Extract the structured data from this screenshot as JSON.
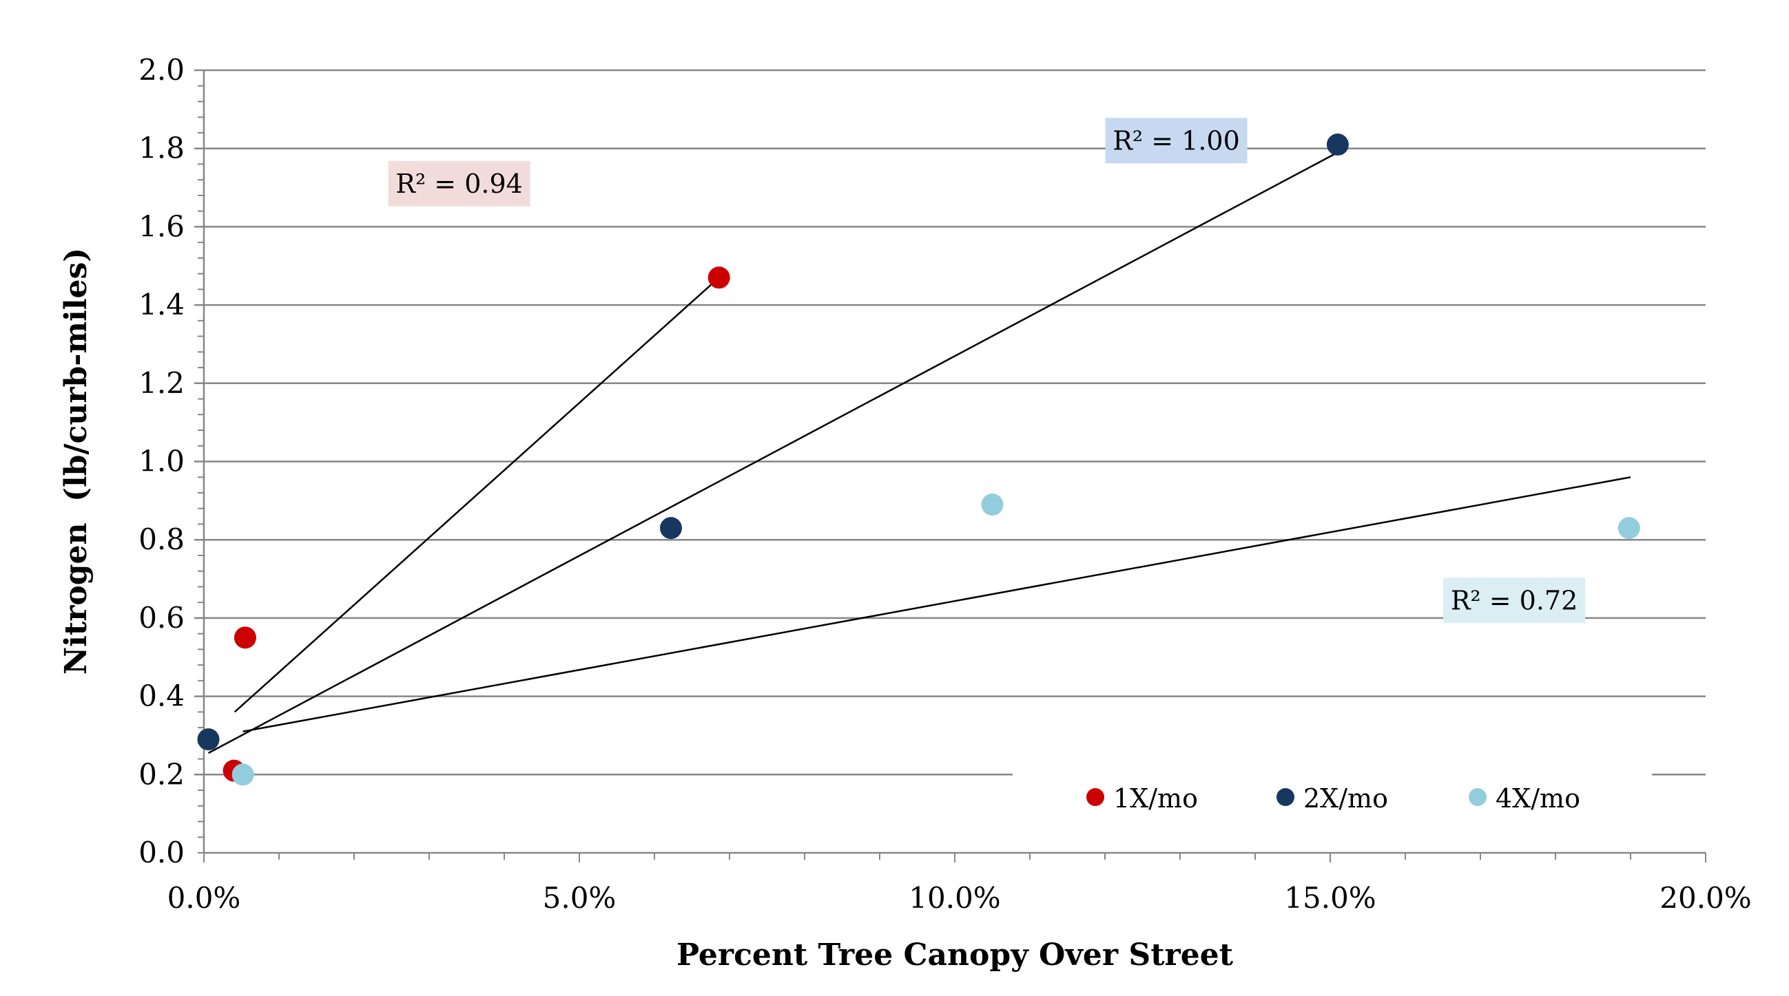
{
  "chart_data": {
    "type": "scatter",
    "title": "",
    "xlabel": "Percent Tree Canopy Over Street",
    "ylabel": "Nitrogen  (lb/curb-miles)",
    "xlim": [
      0,
      20
    ],
    "ylim": [
      0,
      2.0
    ],
    "x_ticks": [
      "0.0%",
      "5.0%",
      "10.0%",
      "15.0%",
      "20.0%"
    ],
    "x_tick_values": [
      0,
      5,
      10,
      15,
      20
    ],
    "y_ticks": [
      "0.0",
      "0.2",
      "0.4",
      "0.6",
      "0.8",
      "1.0",
      "1.2",
      "1.4",
      "1.6",
      "1.8",
      "2.0"
    ],
    "y_tick_values": [
      0,
      0.2,
      0.4,
      0.6,
      0.8,
      1.0,
      1.2,
      1.4,
      1.6,
      1.8,
      2.0
    ],
    "grid": "horizontal",
    "legend_position": "bottom-right",
    "series": [
      {
        "name": "1X/mo",
        "color": "#cc0000",
        "points": [
          [
            0.55,
            0.55
          ],
          [
            0.4,
            0.21
          ],
          [
            6.86,
            1.47
          ]
        ],
        "trendline": [
          [
            0.41,
            0.36
          ],
          [
            6.86,
            1.47
          ]
        ],
        "r2_label": "R² = 0.94",
        "r2_bg": "#f2dcdb",
        "r2_at": [
          3.4,
          1.71
        ]
      },
      {
        "name": "2X/mo",
        "color": "#17375e",
        "points": [
          [
            0.06,
            0.29
          ],
          [
            6.22,
            0.83
          ],
          [
            15.1,
            1.81
          ]
        ],
        "trendline": [
          [
            0.06,
            0.255
          ],
          [
            15.1,
            1.79
          ]
        ],
        "r2_label": "R² = 1.00",
        "r2_bg": "#c6d9f1",
        "r2_at": [
          12.95,
          1.82
        ]
      },
      {
        "name": "4X/mo",
        "color": "#93cddd",
        "points": [
          [
            0.52,
            0.2
          ],
          [
            10.5,
            0.89
          ],
          [
            18.98,
            0.83
          ]
        ],
        "trendline": [
          [
            0.52,
            0.31
          ],
          [
            19.0,
            0.96
          ]
        ],
        "r2_label": "R² = 0.72",
        "r2_bg": "#dbeef4",
        "r2_at": [
          17.45,
          0.645
        ]
      }
    ]
  }
}
